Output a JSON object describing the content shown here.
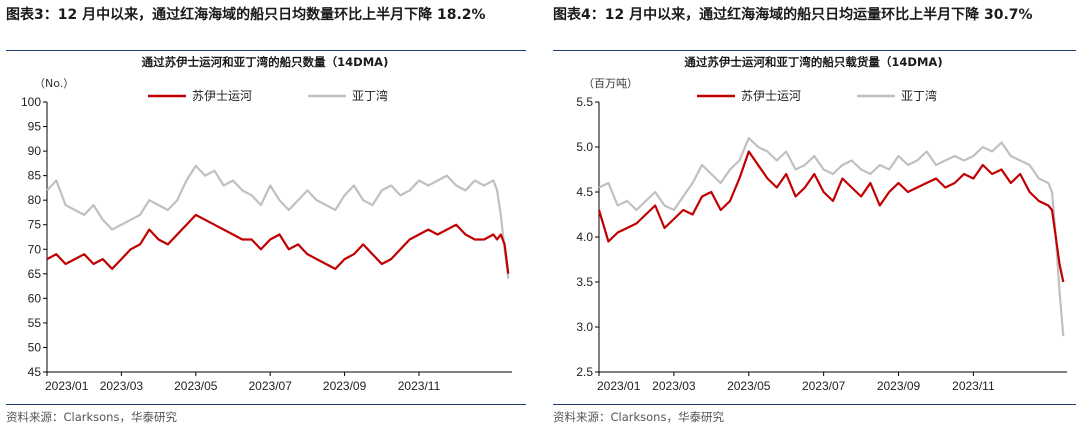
{
  "figures": [
    {
      "label": "图表3：",
      "title": "12 月中以来，通过红海海域的船只日均数量环比上半月下降 18.2%",
      "source": "资料来源：Clarksons，华泰研究"
    },
    {
      "label": "图表4：",
      "title": "12 月中以来，通过红海海域的船只日均运量环比上半月下降 30.7%",
      "source": "资料来源：Clarksons，华泰研究"
    }
  ],
  "colors": {
    "suez": "#c00000",
    "bab": "#c0c0c0",
    "rule": "#1f3f73"
  },
  "chart_data": [
    {
      "type": "line",
      "title": "通过苏伊士运河和亚丁湾的船只数量（14DMA)",
      "ylabel": "（No.）",
      "ylim": [
        45,
        100
      ],
      "yticks": [
        45,
        50,
        55,
        60,
        65,
        70,
        75,
        80,
        85,
        90,
        95,
        100
      ],
      "ytick_labels": [
        "45",
        "50",
        "55",
        "60",
        "65",
        "70",
        "75",
        "80",
        "85",
        "90",
        "95",
        "100"
      ],
      "xlim": [
        0,
        12.5
      ],
      "xticks": [
        0,
        2,
        4,
        6,
        8,
        10
      ],
      "xtick_labels": [
        "2023/01",
        "2023/03",
        "2023/05",
        "2023/07",
        "2023/09",
        "2023/11"
      ],
      "legend": "top-center",
      "series": [
        {
          "name": "苏伊士运河",
          "color": "#c00000",
          "x": [
            0,
            0.25,
            0.5,
            0.75,
            1,
            1.25,
            1.5,
            1.75,
            2,
            2.25,
            2.5,
            2.75,
            3,
            3.25,
            3.5,
            3.75,
            4,
            4.25,
            4.5,
            4.75,
            5,
            5.25,
            5.5,
            5.75,
            6,
            6.25,
            6.5,
            6.75,
            7,
            7.25,
            7.5,
            7.75,
            8,
            8.25,
            8.5,
            8.75,
            9,
            9.25,
            9.5,
            9.75,
            10,
            10.25,
            10.5,
            10.75,
            11,
            11.25,
            11.5,
            11.75,
            12,
            12.1,
            12.2,
            12.3,
            12.4
          ],
          "values": [
            68,
            69,
            67,
            68,
            69,
            67,
            68,
            66,
            68,
            70,
            71,
            74,
            72,
            71,
            73,
            75,
            77,
            76,
            75,
            74,
            73,
            72,
            72,
            70,
            72,
            73,
            70,
            71,
            69,
            68,
            67,
            66,
            68,
            69,
            71,
            69,
            67,
            68,
            70,
            72,
            73,
            74,
            73,
            74,
            75,
            73,
            72,
            72,
            73,
            72,
            73,
            71,
            65
          ]
        },
        {
          "name": "亚丁湾",
          "color": "#c0c0c0",
          "x": [
            0,
            0.25,
            0.5,
            0.75,
            1,
            1.25,
            1.5,
            1.75,
            2,
            2.25,
            2.5,
            2.75,
            3,
            3.25,
            3.5,
            3.75,
            4,
            4.25,
            4.5,
            4.75,
            5,
            5.25,
            5.5,
            5.75,
            6,
            6.25,
            6.5,
            6.75,
            7,
            7.25,
            7.5,
            7.75,
            8,
            8.25,
            8.5,
            8.75,
            9,
            9.25,
            9.5,
            9.75,
            10,
            10.25,
            10.5,
            10.75,
            11,
            11.25,
            11.5,
            11.75,
            12,
            12.1,
            12.2,
            12.3,
            12.4
          ],
          "values": [
            82,
            84,
            79,
            78,
            77,
            79,
            76,
            74,
            75,
            76,
            77,
            80,
            79,
            78,
            80,
            84,
            87,
            85,
            86,
            83,
            84,
            82,
            81,
            79,
            83,
            80,
            78,
            80,
            82,
            80,
            79,
            78,
            81,
            83,
            80,
            79,
            82,
            83,
            81,
            82,
            84,
            83,
            84,
            85,
            83,
            82,
            84,
            83,
            84,
            82,
            77,
            70,
            64
          ]
        }
      ]
    },
    {
      "type": "line",
      "title": "通过苏伊士运河和亚丁湾的船只载货量（14DMA)",
      "ylabel": "（百万吨）",
      "ylim": [
        2.5,
        5.5
      ],
      "yticks": [
        2.5,
        3.0,
        3.5,
        4.0,
        4.5,
        5.0,
        5.5
      ],
      "ytick_labels": [
        "2.5",
        "3.0",
        "3.5",
        "4.0",
        "4.5",
        "5.0",
        "5.5"
      ],
      "xlim": [
        0,
        12.5
      ],
      "xticks": [
        0,
        2,
        4,
        6,
        8,
        10
      ],
      "xtick_labels": [
        "2023/01",
        "2023/03",
        "2023/05",
        "2023/07",
        "2023/09",
        "2023/11"
      ],
      "legend": "top-center",
      "series": [
        {
          "name": "苏伊士运河",
          "color": "#c00000",
          "x": [
            0,
            0.25,
            0.5,
            0.75,
            1,
            1.25,
            1.5,
            1.75,
            2,
            2.25,
            2.5,
            2.75,
            3,
            3.25,
            3.5,
            3.75,
            4,
            4.25,
            4.5,
            4.75,
            5,
            5.25,
            5.5,
            5.75,
            6,
            6.25,
            6.5,
            6.75,
            7,
            7.25,
            7.5,
            7.75,
            8,
            8.25,
            8.5,
            8.75,
            9,
            9.25,
            9.5,
            9.75,
            10,
            10.25,
            10.5,
            10.75,
            11,
            11.25,
            11.5,
            11.75,
            12,
            12.1,
            12.2,
            12.3,
            12.4
          ],
          "values": [
            4.3,
            3.95,
            4.05,
            4.1,
            4.15,
            4.25,
            4.35,
            4.1,
            4.2,
            4.3,
            4.25,
            4.45,
            4.5,
            4.3,
            4.4,
            4.65,
            4.95,
            4.8,
            4.65,
            4.55,
            4.7,
            4.45,
            4.55,
            4.7,
            4.5,
            4.4,
            4.65,
            4.55,
            4.45,
            4.6,
            4.35,
            4.5,
            4.6,
            4.5,
            4.55,
            4.6,
            4.65,
            4.55,
            4.6,
            4.7,
            4.65,
            4.8,
            4.7,
            4.75,
            4.6,
            4.7,
            4.5,
            4.4,
            4.35,
            4.3,
            4.0,
            3.7,
            3.5
          ]
        },
        {
          "name": "亚丁湾",
          "color": "#c0c0c0",
          "x": [
            0,
            0.25,
            0.5,
            0.75,
            1,
            1.25,
            1.5,
            1.75,
            2,
            2.25,
            2.5,
            2.75,
            3,
            3.25,
            3.5,
            3.75,
            4,
            4.25,
            4.5,
            4.75,
            5,
            5.25,
            5.5,
            5.75,
            6,
            6.25,
            6.5,
            6.75,
            7,
            7.25,
            7.5,
            7.75,
            8,
            8.25,
            8.5,
            8.75,
            9,
            9.25,
            9.5,
            9.75,
            10,
            10.25,
            10.5,
            10.75,
            11,
            11.25,
            11.5,
            11.75,
            12,
            12.1,
            12.2,
            12.3,
            12.4
          ],
          "values": [
            4.55,
            4.6,
            4.35,
            4.4,
            4.3,
            4.4,
            4.5,
            4.35,
            4.3,
            4.45,
            4.6,
            4.8,
            4.7,
            4.6,
            4.75,
            4.85,
            5.1,
            5.0,
            4.95,
            4.85,
            4.95,
            4.75,
            4.8,
            4.9,
            4.75,
            4.7,
            4.8,
            4.85,
            4.75,
            4.7,
            4.8,
            4.75,
            4.9,
            4.8,
            4.85,
            4.95,
            4.8,
            4.85,
            4.9,
            4.85,
            4.9,
            5.0,
            4.95,
            5.05,
            4.9,
            4.85,
            4.8,
            4.65,
            4.6,
            4.5,
            4.0,
            3.4,
            2.9
          ]
        }
      ]
    }
  ]
}
